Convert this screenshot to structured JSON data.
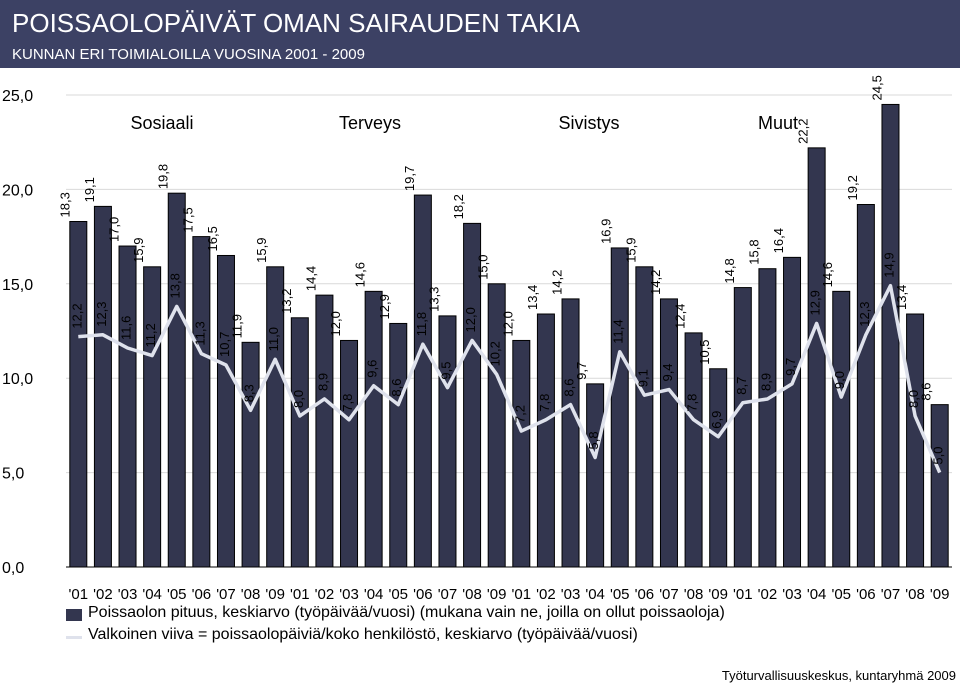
{
  "header": {
    "title": "POISSAOLOPÄIVÄT OMAN SAIRAUDEN TAKIA",
    "subtitle": "KUNNAN ERI TOIMIALOILLA VUOSINA 2001 - 2009"
  },
  "legend": {
    "bar_label": "Poissaolon pituus, keskiarvo  (työpäivää/vuosi) (mukana vain ne, joilla on ollut poissaoloja)",
    "line_label": "Valkoinen viiva = poissaolopäiviä/koko henkilöstö, keskiarvo (työpäivää/vuosi)"
  },
  "source": "Työturvallisuuskeskus, kuntaryhmä 2009",
  "colors": {
    "bar": "#33364f",
    "line": "#dfe2ec",
    "header": "#3c4164"
  },
  "chart_data": {
    "type": "bar",
    "title": "POISSAOLOPÄIVÄT OMAN SAIRAUDEN TAKIA",
    "subtitle": "KUNNAN ERI TOIMIALOILLA VUOSINA 2001 - 2009",
    "groups": [
      "Sosiaali",
      "Terveys",
      "Sivistys",
      "Muut"
    ],
    "categories": [
      "'01",
      "'02",
      "'03",
      "'04",
      "'05",
      "'06",
      "'07",
      "'08",
      "'09",
      "'01",
      "'02",
      "'03",
      "'04",
      "'05",
      "'06",
      "'07",
      "'08",
      "'09",
      "'01",
      "'02",
      "'03",
      "'04",
      "'05",
      "'06",
      "'07",
      "'08",
      "'09",
      "'01",
      "'02",
      "'03",
      "'04",
      "'05",
      "'06",
      "'07",
      "'08",
      "'09"
    ],
    "series": [
      {
        "name": "Poissaolon pituus, keskiarvo  (työpäivää/vuosi) (mukana vain ne, joilla on ollut poissaoloja)",
        "type": "bar",
        "values": [
          18.3,
          19.1,
          17.0,
          15.9,
          19.8,
          17.5,
          16.5,
          11.9,
          15.9,
          13.2,
          14.4,
          12.0,
          14.6,
          12.9,
          19.7,
          13.3,
          18.2,
          15.0,
          12.0,
          13.4,
          14.2,
          9.7,
          16.9,
          15.9,
          14.2,
          12.4,
          10.5,
          14.8,
          15.8,
          16.4,
          22.2,
          14.6,
          19.2,
          24.5,
          13.4,
          8.6
        ],
        "labels": [
          "18,3",
          "19,1",
          "17,0",
          "15,9",
          "19,8",
          "17,5",
          "16,5",
          "11,9",
          "15,9",
          "13,2",
          "14,4",
          "12,0",
          "14,6",
          "12,9",
          "19,7",
          "13,3",
          "18,2",
          "15,0",
          "12,0",
          "13,4",
          "14,2",
          "9,7",
          "16,9",
          "15,9",
          "14,2",
          "12,4",
          "10,5",
          "14,8",
          "15,8",
          "16,4",
          "22,2",
          "14,6",
          "19,2",
          "24,5",
          "13,4",
          "8,6"
        ]
      },
      {
        "name": "Valkoinen viiva = poissaolopäiviä/koko henkilöstö, keskiarvo (työpäivää/vuosi)",
        "type": "line",
        "values": [
          12.2,
          12.3,
          11.6,
          11.2,
          13.8,
          11.3,
          10.7,
          8.3,
          11.0,
          8.0,
          8.9,
          7.8,
          9.6,
          8.6,
          11.8,
          9.5,
          12.0,
          10.2,
          7.2,
          7.8,
          8.6,
          5.8,
          11.4,
          9.1,
          9.4,
          7.8,
          6.9,
          8.7,
          8.9,
          9.7,
          12.9,
          9.0,
          12.3,
          14.9,
          8.0,
          5.0
        ],
        "labels": [
          "12,2",
          "12,3",
          "11,6",
          "11,2",
          "13,8",
          "11,3",
          "10,7",
          "8,3",
          "11,0",
          "8,0",
          "8,9",
          "7,8",
          "9,6",
          "8,6",
          "11,8",
          "9,5",
          "12,0",
          "10,2",
          "7,2",
          "7,8",
          "8,6",
          "5,8",
          "11,4",
          "9,1",
          "9,4",
          "7,8",
          "6,9",
          "8,7",
          "8,9",
          "9,7",
          "12,9",
          "9,0",
          "12,3",
          "14,9",
          "8,0",
          "5,0"
        ]
      }
    ],
    "yticks": [
      "0,0",
      "5,0",
      "10,0",
      "15,0",
      "20,0",
      "25,0"
    ],
    "ylim": [
      0,
      25
    ],
    "grid": true,
    "legend_position": "bottom"
  }
}
